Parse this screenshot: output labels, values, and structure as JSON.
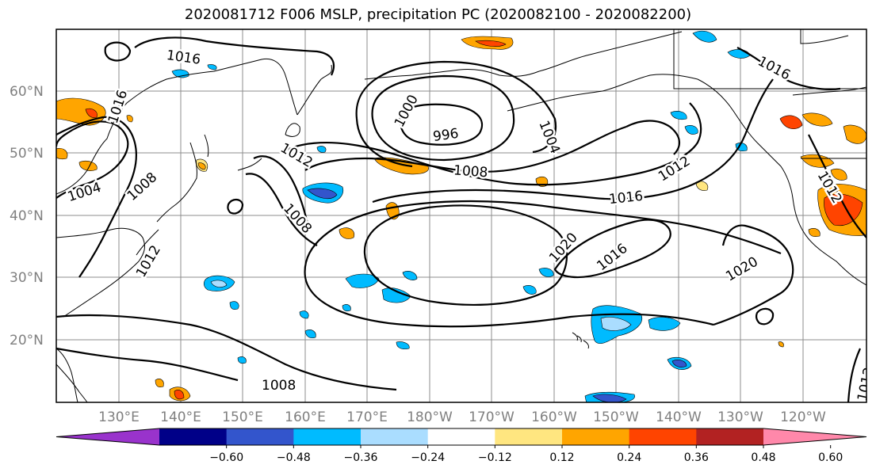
{
  "title": "2020081712 F006 MSLP, precipitation PC (2020082100 - 2020082200)",
  "lat_labels": [
    "60°N",
    "50°N",
    "40°N",
    "30°N",
    "20°N"
  ],
  "lon_labels": [
    "130°E",
    "140°E",
    "150°E",
    "160°E",
    "170°E",
    "180°W",
    "170°W",
    "160°W",
    "150°W",
    "140°W",
    "130°W",
    "120°W"
  ],
  "contour_labels": [
    "1016",
    "1016",
    "1000",
    "996",
    "1004",
    "1012",
    "1008",
    "1012",
    "1016",
    "1004",
    "1008",
    "1012",
    "1008",
    "1020",
    "1016",
    "1020",
    "1012",
    "1008",
    "1012",
    "1016",
    "1008"
  ],
  "colorbar": {
    "ticks": [
      "−0.60",
      "−0.48",
      "−0.36",
      "−0.24",
      "−0.12",
      "0.12",
      "0.24",
      "0.36",
      "0.48",
      "0.60"
    ],
    "colors": [
      "#9933cc",
      "#000088",
      "#3355cc",
      "#00bbff",
      "#aaddff",
      "#ffffff",
      "#ffe680",
      "#ffa500",
      "#ff4400",
      "#b22222",
      "#ff88aa"
    ]
  }
}
